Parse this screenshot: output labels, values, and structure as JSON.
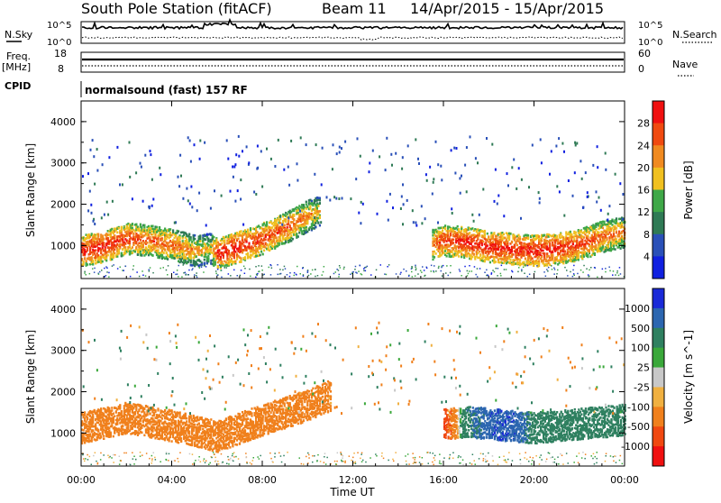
{
  "header": {
    "title": "South Pole Station (fitACF)",
    "beam": "Beam 11",
    "date_range": "14/Apr/2015 - 15/Apr/2015"
  },
  "top_panel": {
    "nsky_label": "N.Sky",
    "nsky_ticks": [
      "10^5",
      "10^0"
    ],
    "nsearch_label": "N.Search",
    "nsearch_ticks": [
      "10^5",
      "10^0"
    ],
    "freq_label": "Freq.",
    "freq_unit": "[MHz]",
    "freq_ticks": [
      "18",
      "8"
    ],
    "nave_label": "Nave",
    "nave_ticks": [
      "60",
      "0"
    ],
    "cpid_label": "CPID",
    "cpid_text": "normalsound (fast) 157 RF"
  },
  "colors": {
    "power": [
      "#1020e0",
      "#2a50b8",
      "#2f7a55",
      "#3fa848",
      "#f0c020",
      "#f08a20",
      "#f04a10",
      "#f01010"
    ],
    "velocity": [
      "#1a2ad8",
      "#2c66b0",
      "#2f8060",
      "#3aa83a",
      "#c8c8c8",
      "#f0b040",
      "#f0801c",
      "#f04810",
      "#f01010"
    ]
  },
  "chart_data": [
    {
      "type": "heatmap",
      "parameter": "power",
      "ylabel": "Slant Range [km]",
      "yticks": [
        "1000",
        "2000",
        "3000",
        "4000"
      ],
      "ylim": [
        200,
        4500
      ],
      "xlim": [
        0,
        24
      ],
      "colorbar_label": "Power [dB]",
      "colorbar_ticks": [
        "4",
        "8",
        "12",
        "16",
        "20",
        "24",
        "28"
      ],
      "colorbar_range": [
        0,
        32
      ],
      "series": [
        {
          "x": [
            0,
            1,
            2,
            3,
            4,
            5,
            5.7,
            6,
            7,
            8,
            9,
            10,
            10.5
          ],
          "y": [
            850,
            950,
            1150,
            1100,
            1000,
            850,
            900,
            800,
            950,
            1150,
            1400,
            1700,
            1800
          ],
          "values": [
            30,
            30,
            28,
            26,
            26,
            22,
            20,
            30,
            30,
            28,
            26,
            24,
            20
          ]
        },
        {
          "x": [
            15.5,
            16,
            17,
            18,
            19,
            20,
            21,
            22,
            23,
            24
          ],
          "y": [
            1000,
            1100,
            1050,
            950,
            900,
            850,
            900,
            1000,
            1200,
            1300
          ],
          "values": [
            26,
            28,
            30,
            30,
            30,
            30,
            30,
            28,
            26,
            24
          ]
        }
      ]
    },
    {
      "type": "heatmap",
      "parameter": "velocity",
      "ylabel": "Slant Range [km]",
      "yticks": [
        "1000",
        "2000",
        "3000",
        "4000"
      ],
      "ylim": [
        200,
        4500
      ],
      "xlim": [
        0,
        24
      ],
      "xlabel": "Time UT",
      "xticks": [
        "00:00",
        "04:00",
        "08:00",
        "12:00",
        "16:00",
        "20:00",
        "00:00"
      ],
      "colorbar_label": "Velocity [m s^-1]",
      "colorbar_ticks": [
        "1000",
        "500",
        "100",
        "25",
        "-25",
        "-100",
        "-500",
        "-1000"
      ],
      "series": [
        {
          "x": [
            0,
            2,
            4,
            6,
            8,
            10,
            11
          ],
          "y": [
            1100,
            1350,
            1150,
            900,
            1300,
            1650,
            1900
          ],
          "values": [
            -300,
            -300,
            -300,
            -300,
            -300,
            -300,
            -150
          ]
        },
        {
          "x": [
            16,
            17,
            18,
            19,
            20,
            22,
            24
          ],
          "y": [
            1200,
            1250,
            1200,
            1150,
            1100,
            1200,
            1300
          ],
          "values": [
            -800,
            400,
            800,
            900,
            300,
            200,
            150
          ]
        }
      ]
    }
  ]
}
